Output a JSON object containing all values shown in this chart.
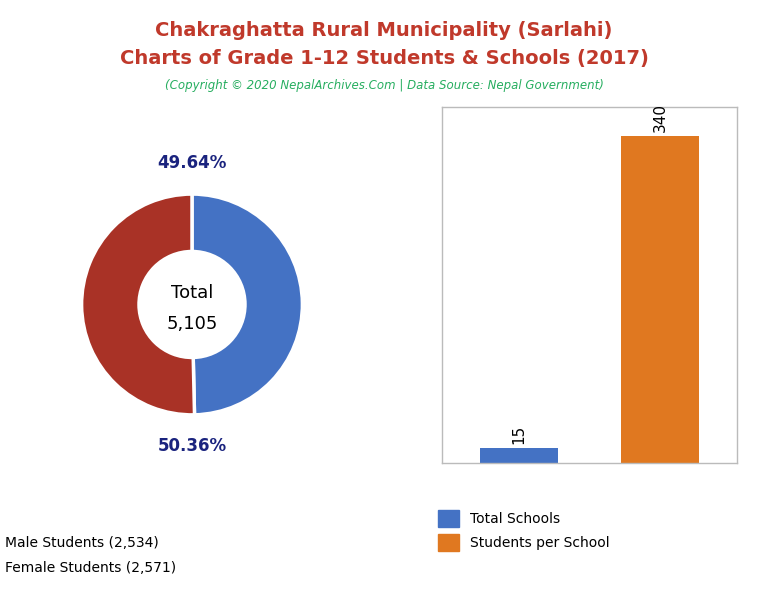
{
  "title_line1": "Chakraghatta Rural Municipality (Sarlahi)",
  "title_line2": "Charts of Grade 1-12 Students & Schools (2017)",
  "subtitle": "(Copyright © 2020 NepalArchives.Com | Data Source: Nepal Government)",
  "title_color": "#c0392b",
  "subtitle_color": "#27ae60",
  "male_students": 2534,
  "female_students": 2571,
  "total_students": 5105,
  "male_pct": "49.64%",
  "female_pct": "50.36%",
  "male_color": "#4472c4",
  "female_color": "#a93226",
  "pct_color": "#1a237e",
  "total_schools": 15,
  "students_per_school": 340,
  "bar_blue": "#4472c4",
  "bar_orange": "#e07820",
  "legend_male": "Male Students (2,534)",
  "legend_female": "Female Students (2,571)",
  "legend_schools": "Total Schools",
  "legend_sps": "Students per School",
  "background_color": "#ffffff"
}
